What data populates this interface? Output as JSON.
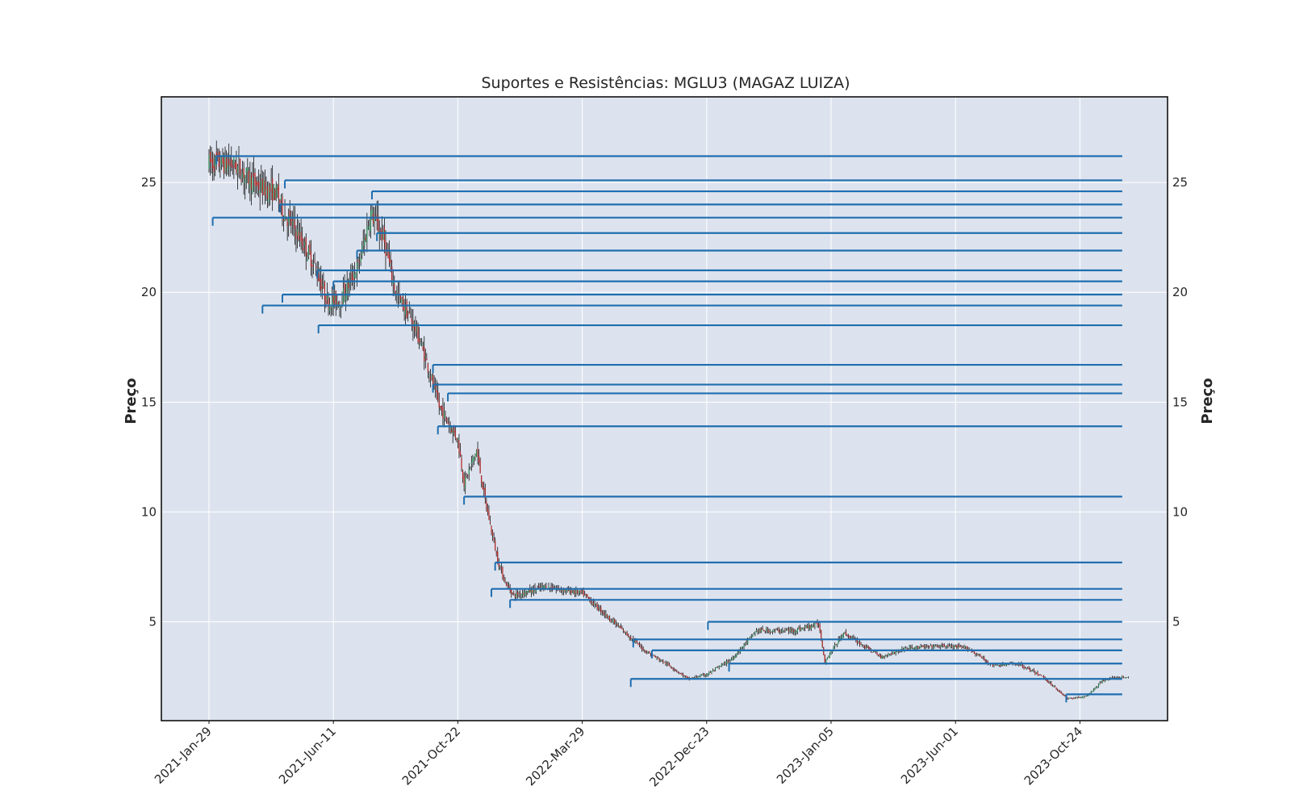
{
  "chart_data": {
    "type": "candlestick",
    "title": "Suportes e Resistências: MGLU3 (MAGAZ LUIZA)",
    "ylabel_left": "Preço",
    "ylabel_right": "Preço",
    "xlabel": "",
    "ylim": [
      0.5,
      28.9
    ],
    "yticks": [
      5,
      10,
      15,
      20,
      25
    ],
    "xtick_labels": [
      "2021-Jan-29",
      "2021-Jun-11",
      "2021-Oct-22",
      "2022-Mar-29",
      "2022-Dec-23",
      "2023-Jan-05",
      "2023-Jun-01",
      "2023-Oct-24"
    ],
    "n_bars": 740,
    "xtick_indices": [
      0,
      100,
      200,
      300,
      400,
      500,
      600,
      700
    ],
    "grid": true,
    "background": "#dde3ee",
    "colors": {
      "up": "#2e8b57",
      "down": "#b22222",
      "wick": "#111111",
      "level": "#1f6eb0"
    },
    "price_path": [
      [
        0,
        25.9
      ],
      [
        20,
        25.8
      ],
      [
        40,
        24.8
      ],
      [
        55,
        24.5
      ],
      [
        60,
        23.6
      ],
      [
        70,
        22.8
      ],
      [
        85,
        21.2
      ],
      [
        95,
        19.6
      ],
      [
        105,
        19.6
      ],
      [
        120,
        21.2
      ],
      [
        130,
        23.6
      ],
      [
        140,
        22.5
      ],
      [
        150,
        20.0
      ],
      [
        165,
        18.5
      ],
      [
        175,
        16.8
      ],
      [
        185,
        14.8
      ],
      [
        200,
        13.3
      ],
      [
        205,
        11.3
      ],
      [
        215,
        12.8
      ],
      [
        222,
        10.5
      ],
      [
        232,
        7.8
      ],
      [
        238,
        6.8
      ],
      [
        245,
        6.2
      ],
      [
        270,
        6.6
      ],
      [
        300,
        6.3
      ],
      [
        325,
        5.0
      ],
      [
        350,
        3.7
      ],
      [
        370,
        3.0
      ],
      [
        385,
        2.4
      ],
      [
        400,
        2.6
      ],
      [
        420,
        3.3
      ],
      [
        440,
        4.6
      ],
      [
        470,
        4.6
      ],
      [
        490,
        4.9
      ],
      [
        495,
        3.2
      ],
      [
        510,
        4.5
      ],
      [
        540,
        3.4
      ],
      [
        560,
        3.8
      ],
      [
        590,
        3.9
      ],
      [
        610,
        3.8
      ],
      [
        630,
        3.0
      ],
      [
        650,
        3.1
      ],
      [
        670,
        2.5
      ],
      [
        690,
        1.5
      ],
      [
        705,
        1.6
      ],
      [
        720,
        2.4
      ],
      [
        740,
        2.5
      ]
    ],
    "levels": [
      {
        "y": 26.2,
        "x_start": 6
      },
      {
        "y": 25.1,
        "x_start": 61
      },
      {
        "y": 24.6,
        "x_start": 131
      },
      {
        "y": 24.0,
        "x_start": 57
      },
      {
        "y": 23.4,
        "x_start": 3
      },
      {
        "y": 22.7,
        "x_start": 135
      },
      {
        "y": 21.9,
        "x_start": 119
      },
      {
        "y": 21.0,
        "x_start": 87
      },
      {
        "y": 20.5,
        "x_start": 100
      },
      {
        "y": 19.9,
        "x_start": 59
      },
      {
        "y": 19.4,
        "x_start": 43
      },
      {
        "y": 18.5,
        "x_start": 88
      },
      {
        "y": 16.7,
        "x_start": 180
      },
      {
        "y": 15.8,
        "x_start": 180
      },
      {
        "y": 15.4,
        "x_start": 192
      },
      {
        "y": 13.9,
        "x_start": 184
      },
      {
        "y": 10.7,
        "x_start": 205
      },
      {
        "y": 7.7,
        "x_start": 230
      },
      {
        "y": 6.5,
        "x_start": 227
      },
      {
        "y": 6.0,
        "x_start": 242
      },
      {
        "y": 5.0,
        "x_start": 401
      },
      {
        "y": 4.2,
        "x_start": 341
      },
      {
        "y": 3.7,
        "x_start": 356
      },
      {
        "y": 3.1,
        "x_start": 418
      },
      {
        "y": 2.4,
        "x_start": 339
      },
      {
        "y": 1.7,
        "x_start": 689
      }
    ],
    "levels_x_end": 734
  }
}
